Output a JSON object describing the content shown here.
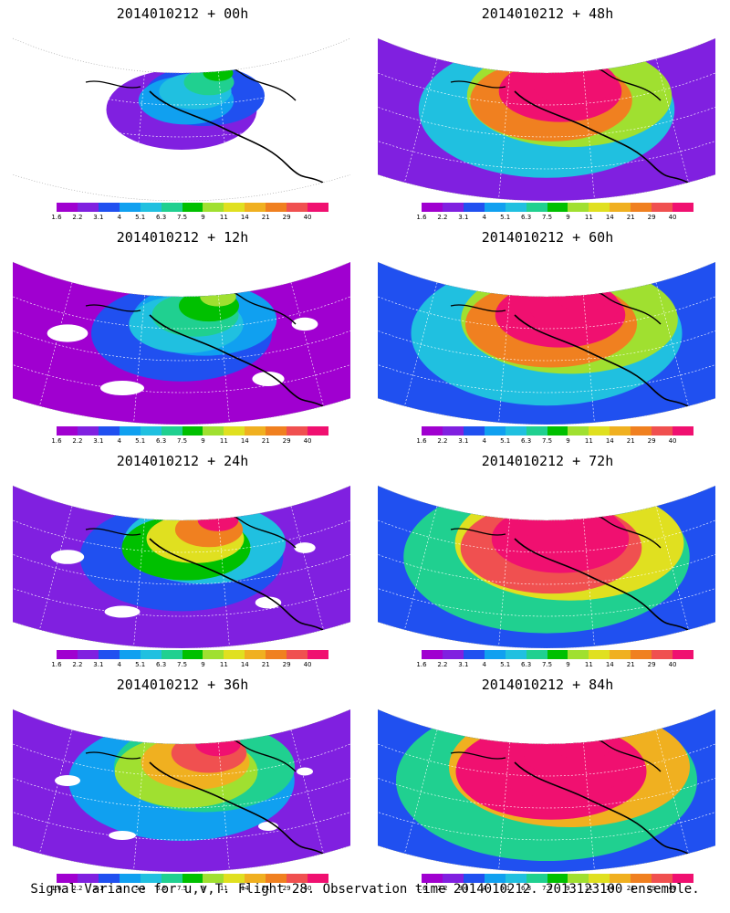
{
  "panels": [
    {
      "title": "2014010212 + 00h",
      "intensity": 0.0
    },
    {
      "title": "2014010212 + 48h",
      "intensity": 0.7
    },
    {
      "title": "2014010212 + 12h",
      "intensity": 0.2
    },
    {
      "title": "2014010212 + 60h",
      "intensity": 0.8
    },
    {
      "title": "2014010212 + 24h",
      "intensity": 0.35
    },
    {
      "title": "2014010212 + 72h",
      "intensity": 0.9
    },
    {
      "title": "2014010212 + 36h",
      "intensity": 0.5
    },
    {
      "title": "2014010212 + 84h",
      "intensity": 1.0
    }
  ],
  "colorbar": {
    "labels": [
      "1.6",
      "2.2",
      "3.1",
      "4",
      "5.1",
      "6.3",
      "7.5",
      "9",
      "11",
      "14",
      "21",
      "29",
      "40"
    ],
    "colors": [
      "#a000d0",
      "#8020e0",
      "#2050f0",
      "#10a0f0",
      "#20c0e0",
      "#20d090",
      "#00c000",
      "#a0e030",
      "#e0e020",
      "#f0b020",
      "#f08020",
      "#f05050",
      "#f01070"
    ]
  },
  "footer": "Signal Variance for u,v,T. Flight 28. Observation time 2014010212. 2013123100 ensemble."
}
